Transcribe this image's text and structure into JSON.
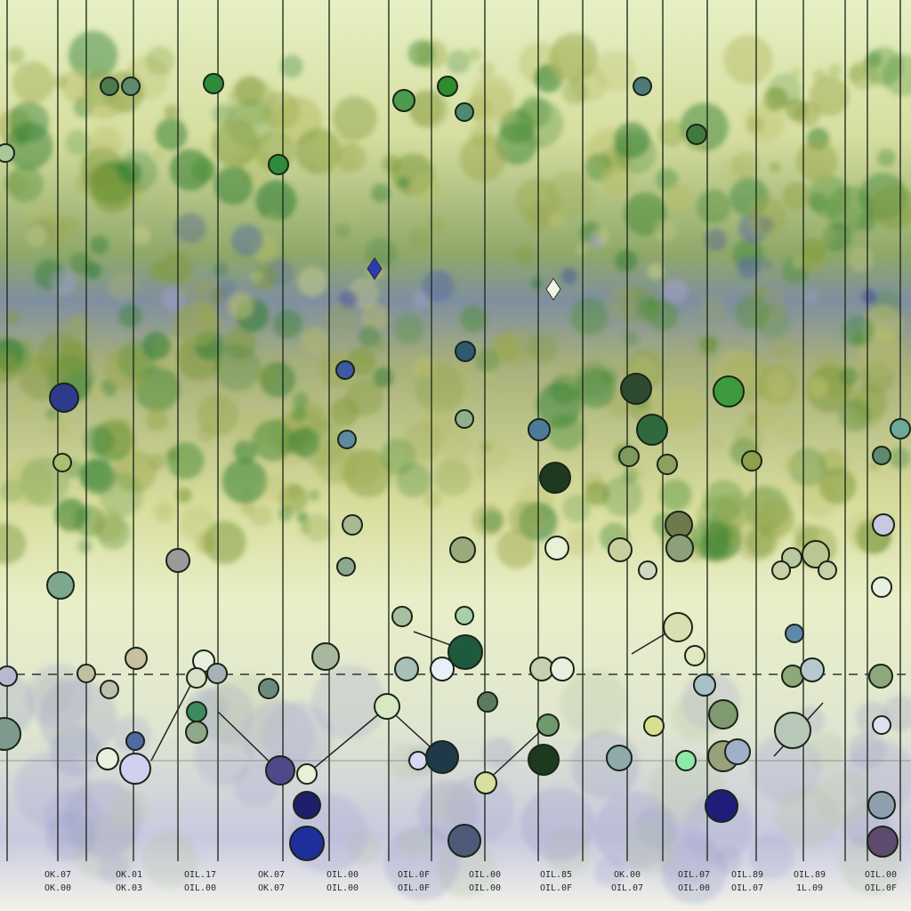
{
  "axis_labels": [
    {
      "top": "OK.07",
      "bottom": "OK.00"
    },
    {
      "top": "OK.01",
      "bottom": "OK.03"
    },
    {
      "top": "OIL.17",
      "bottom": "OIL.00"
    },
    {
      "top": "OK.07",
      "bottom": "OK.07"
    },
    {
      "top": "OIL.00",
      "bottom": "OIL.00"
    },
    {
      "top": "OIL.0F",
      "bottom": "OIL.0F"
    },
    {
      "top": "OIL.00",
      "bottom": "OIL.00"
    },
    {
      "top": "OIL.85",
      "bottom": "OIL.0F"
    },
    {
      "top": "OK.00",
      "bottom": "OIL.07"
    },
    {
      "top": "OIL.07",
      "bottom": "OIL.00"
    },
    {
      "top": "OIL.89",
      "bottom": "OIL.07"
    },
    {
      "top": "OIL.89",
      "bottom": "1L.09"
    },
    {
      "top": "OIL.00",
      "bottom": "OIL.0F"
    }
  ]
}
